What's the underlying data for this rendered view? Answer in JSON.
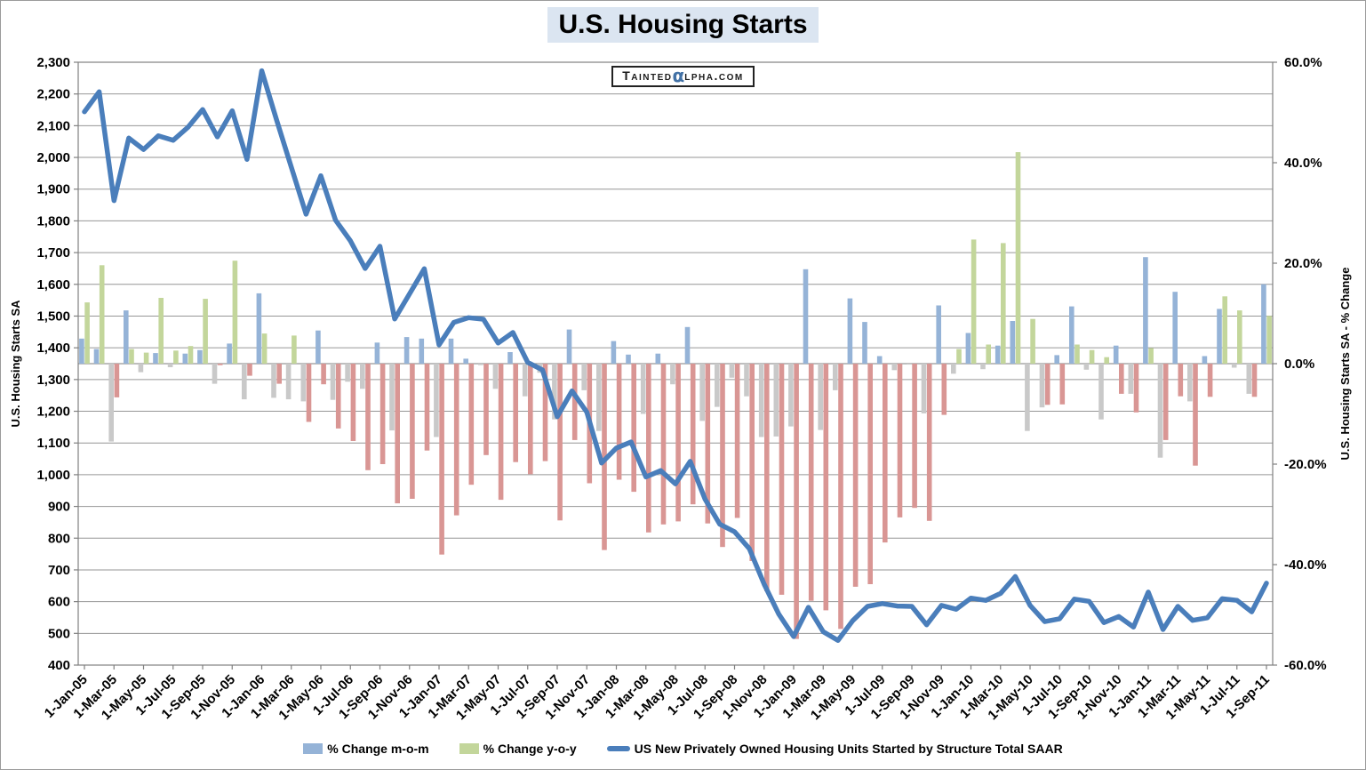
{
  "title": "U.S. Housing Starts",
  "watermark": {
    "part1": "Tainted",
    "alpha": "α",
    "part2": "lpha.com"
  },
  "colors": {
    "mom_positive": "#95B3D7",
    "mom_negative": "#C9C9C9",
    "yoy_positive": "#C3D69B",
    "yoy_negative": "#D99694",
    "line": "#4A7EBB",
    "gridline": "#969696",
    "axis": "#808080",
    "title_highlight": "#DBE5F1",
    "watermark_alpha": "#4372A6",
    "text": "#000000"
  },
  "chart_data": {
    "type": "combo",
    "title": "U.S. Housing Starts",
    "grid": "horizontal-on",
    "legend_position": "bottom",
    "months": [
      "1-Jan-05",
      "1-Feb-05",
      "1-Mar-05",
      "1-Apr-05",
      "1-May-05",
      "1-Jun-05",
      "1-Jul-05",
      "1-Aug-05",
      "1-Sep-05",
      "1-Oct-05",
      "1-Nov-05",
      "1-Dec-05",
      "1-Jan-06",
      "1-Feb-06",
      "1-Mar-06",
      "1-Apr-06",
      "1-May-06",
      "1-Jun-06",
      "1-Jul-06",
      "1-Aug-06",
      "1-Sep-06",
      "1-Oct-06",
      "1-Nov-06",
      "1-Dec-06",
      "1-Jan-07",
      "1-Feb-07",
      "1-Mar-07",
      "1-Apr-07",
      "1-May-07",
      "1-Jun-07",
      "1-Jul-07",
      "1-Aug-07",
      "1-Sep-07",
      "1-Oct-07",
      "1-Nov-07",
      "1-Dec-07",
      "1-Jan-08",
      "1-Feb-08",
      "1-Mar-08",
      "1-Apr-08",
      "1-May-08",
      "1-Jun-08",
      "1-Jul-08",
      "1-Aug-08",
      "1-Sep-08",
      "1-Oct-08",
      "1-Nov-08",
      "1-Dec-08",
      "1-Jan-09",
      "1-Feb-09",
      "1-Mar-09",
      "1-Apr-09",
      "1-May-09",
      "1-Jun-09",
      "1-Jul-09",
      "1-Aug-09",
      "1-Sep-09",
      "1-Oct-09",
      "1-Nov-09",
      "1-Dec-09",
      "1-Jan-10",
      "1-Feb-10",
      "1-Mar-10",
      "1-Apr-10",
      "1-May-10",
      "1-Jun-10",
      "1-Jul-10",
      "1-Aug-10",
      "1-Sep-10",
      "1-Oct-10",
      "1-Nov-10",
      "1-Dec-10",
      "1-Jan-11",
      "1-Feb-11",
      "1-Mar-11",
      "1-Apr-11",
      "1-May-11",
      "1-Jun-11",
      "1-Jul-11",
      "1-Aug-11",
      "1-Sep-11"
    ],
    "x_label_every": 2,
    "series": [
      {
        "name": "% Change m-o-m",
        "type": "bar",
        "axis": "right",
        "color_positive": "#95B3D7",
        "color_negative": "#C9C9C9",
        "values": [
          5.0,
          2.9,
          -15.5,
          10.6,
          -1.7,
          2.1,
          -0.7,
          2.0,
          2.7,
          -4.0,
          4.0,
          -7.1,
          14.0,
          -6.8,
          -7.1,
          -7.5,
          6.6,
          -7.2,
          -3.6,
          -5.0,
          4.2,
          -13.3,
          5.3,
          5.0,
          -14.6,
          5.0,
          1.0,
          -0.3,
          -5.0,
          2.3,
          -6.5,
          -1.8,
          -11.1,
          6.8,
          -5.3,
          -13.4,
          4.5,
          1.8,
          -10.0,
          2.0,
          -4.1,
          7.3,
          -11.4,
          -8.6,
          -2.8,
          -6.5,
          -14.6,
          -14.5,
          -12.5,
          18.8,
          -13.2,
          -5.3,
          13.0,
          8.3,
          1.5,
          -1.3,
          -0.2,
          -9.9,
          11.6,
          -2.0,
          6.1,
          -1.1,
          3.6,
          8.5,
          -13.4,
          -8.7,
          1.7,
          11.4,
          -1.2,
          -11.1,
          3.6,
          -6.0,
          21.2,
          -18.7,
          14.3,
          -7.5,
          1.5,
          10.9,
          -0.8,
          -6.0,
          15.8
        ]
      },
      {
        "name": "% Change y-o-y",
        "type": "bar",
        "axis": "right",
        "color_positive": "#C3D69B",
        "color_negative": "#D99694",
        "values": [
          12.2,
          19.6,
          -6.7,
          2.9,
          2.2,
          13.1,
          2.6,
          3.5,
          12.9,
          -0.3,
          20.5,
          -2.4,
          6.0,
          -4.0,
          5.6,
          -11.6,
          -4.1,
          -12.9,
          -15.4,
          -21.2,
          -20.0,
          -27.8,
          -26.9,
          -17.3,
          -38.0,
          -30.2,
          -24.1,
          -18.2,
          -27.1,
          -19.6,
          -22.0,
          -19.4,
          -31.2,
          -15.2,
          -23.8,
          -37.1,
          -23.1,
          -25.5,
          -33.6,
          -32.0,
          -31.4,
          -28.0,
          -31.8,
          -36.5,
          -30.7,
          -39.3,
          -45.3,
          -46.0,
          -54.8,
          -47.2,
          -49.1,
          -52.8,
          -44.4,
          -43.9,
          -35.6,
          -30.6,
          -28.7,
          -31.3,
          -10.2,
          2.9,
          24.7,
          3.8,
          24.0,
          42.1,
          8.9,
          -8.2,
          -8.1,
          3.8,
          2.7,
          1.3,
          -6.0,
          -9.7,
          3.1,
          -15.2,
          -6.5,
          -20.3,
          -6.6,
          13.4,
          10.6,
          -6.6,
          9.5
        ]
      },
      {
        "name": "US New Privately Owned Housing Units Started by Structure Total SAAR",
        "type": "line",
        "axis": "left",
        "color": "#4A7EBB",
        "values": [
          2144,
          2207,
          1864,
          2061,
          2025,
          2068,
          2054,
          2095,
          2151,
          2065,
          2147,
          1994,
          2273,
          2119,
          1969,
          1821,
          1942,
          1802,
          1737,
          1650,
          1720,
          1491,
          1570,
          1649,
          1409,
          1480,
          1495,
          1490,
          1415,
          1448,
          1354,
          1330,
          1183,
          1264,
          1197,
          1037,
          1084,
          1103,
          993,
          1013,
          971,
          1042,
          923,
          844,
          820,
          767,
          655,
          560,
          490,
          582,
          505,
          478,
          540,
          585,
          594,
          586,
          585,
          527,
          588,
          576,
          611,
          604,
          626,
          679,
          588,
          537,
          546,
          608,
          601,
          534,
          553,
          520,
          630,
          512,
          585,
          541,
          549,
          609,
          604,
          568,
          658
        ]
      }
    ],
    "left_axis": {
      "title": "U.S. Housing Starts SA",
      "min": 400,
      "max": 2300,
      "step": 100,
      "tick_labels": [
        "2,300",
        "2,200",
        "2,100",
        "2,000",
        "1,900",
        "1,800",
        "1,700",
        "1,600",
        "1,500",
        "1,400",
        "1,300",
        "1,200",
        "1,100",
        "1,000",
        "900",
        "800",
        "700",
        "600",
        "500",
        "400"
      ]
    },
    "right_axis": {
      "title": "U.S. Housing Starts SA - % Change",
      "min": -60,
      "max": 60,
      "step": 20,
      "tick_labels": [
        "60.0%",
        "40.0%",
        "20.0%",
        "0.0%",
        "-20.0%",
        "-40.0%",
        "-60.0%"
      ]
    },
    "legend": [
      "% Change m-o-m",
      "% Change y-o-y",
      "US New Privately Owned Housing Units Started by Structure Total SAAR"
    ]
  }
}
